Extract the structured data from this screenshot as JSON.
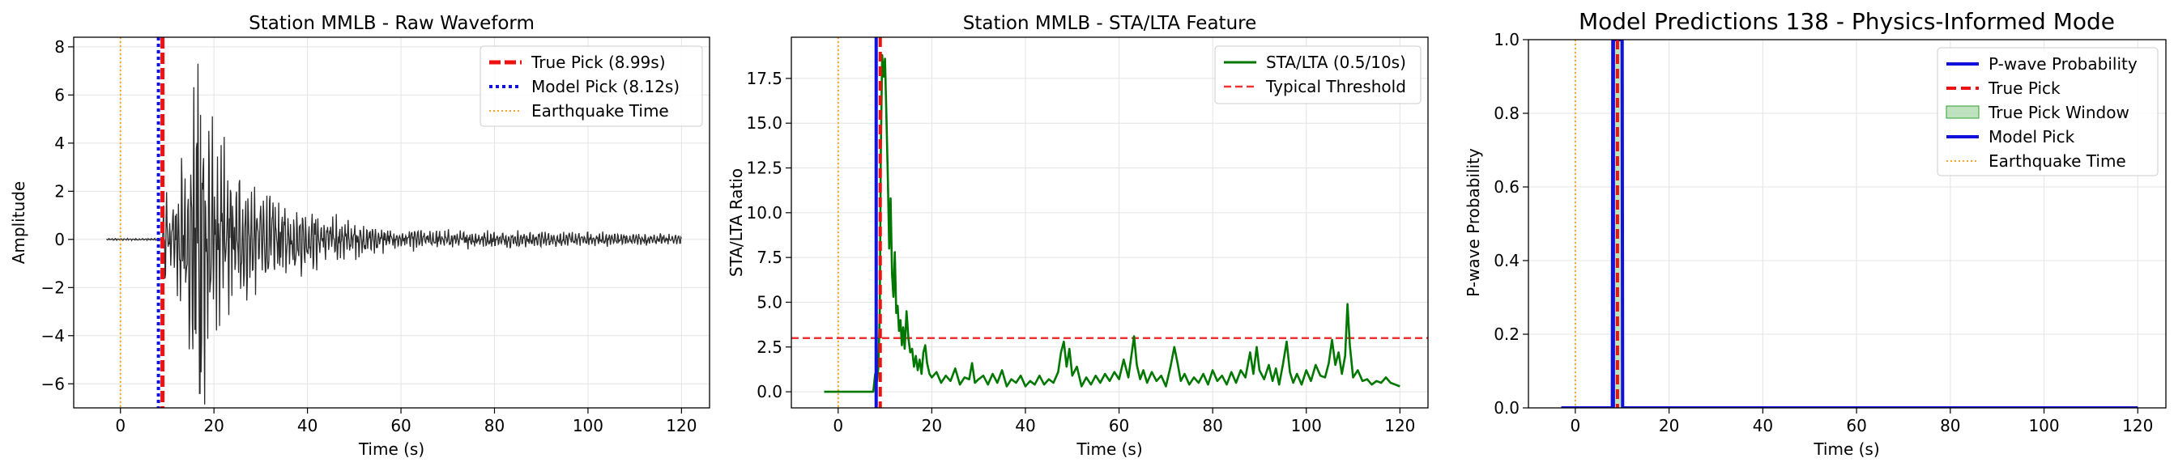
{
  "chart_data": [
    {
      "type": "line",
      "title": "Station MMLB - Raw Waveform",
      "xlabel": "Time (s)",
      "ylabel": "Amplitude",
      "xlim": [
        -10,
        126
      ],
      "ylim": [
        -7,
        8.4
      ],
      "xticks": [
        0,
        20,
        40,
        60,
        80,
        100,
        120
      ],
      "yticks": [
        -6,
        -4,
        -2,
        0,
        2,
        4,
        6,
        8
      ],
      "grid": true,
      "legend": "top-right",
      "colors": {
        "waveform": "#2b2b2b",
        "true_pick": "#ee1111",
        "model_pick": "#1111dd",
        "earthquake": "#f5a623"
      },
      "series": [
        {
          "name": "True Pick (8.99s)",
          "kind": "vline",
          "x": 8.99,
          "style": "dashed"
        },
        {
          "name": "Model Pick (8.12s)",
          "kind": "vline",
          "x": 8.12,
          "style": "dotted"
        },
        {
          "name": "Earthquake Time",
          "kind": "vline",
          "x": 0,
          "style": "dotted"
        }
      ],
      "waveform": {
        "x_start": -3,
        "x_end": 120,
        "onset": 9.0,
        "peak_time": 17.0,
        "amplitudes_s": [
          [
            9,
            1.9
          ],
          [
            10,
            1.8
          ],
          [
            11,
            1.9
          ],
          [
            12,
            2.3
          ],
          [
            13,
            3.0
          ],
          [
            14,
            3.6
          ],
          [
            15,
            4.2
          ],
          [
            16,
            6.4
          ],
          [
            17,
            7.3
          ],
          [
            18,
            6.0
          ],
          [
            20,
            4.3
          ],
          [
            22,
            3.6
          ],
          [
            24,
            3.0
          ],
          [
            26,
            2.4
          ],
          [
            28,
            2.1
          ],
          [
            30,
            2.2
          ],
          [
            33,
            1.7
          ],
          [
            36,
            1.6
          ],
          [
            40,
            1.2
          ],
          [
            45,
            1.0
          ],
          [
            50,
            0.7
          ],
          [
            55,
            0.55
          ],
          [
            60,
            0.45
          ],
          [
            70,
            0.35
          ],
          [
            80,
            0.33
          ],
          [
            90,
            0.3
          ],
          [
            100,
            0.28
          ],
          [
            110,
            0.25
          ],
          [
            120,
            0.2
          ]
        ]
      }
    },
    {
      "type": "line",
      "title": "Station MMLB - STA/LTA Feature",
      "xlabel": "Time (s)",
      "ylabel": "STA/LTA Ratio",
      "xlim": [
        -10,
        126
      ],
      "ylim": [
        -0.9,
        19.8
      ],
      "xticks": [
        0,
        20,
        40,
        60,
        80,
        100,
        120
      ],
      "yticks": [
        0.0,
        2.5,
        5.0,
        7.5,
        10.0,
        12.5,
        15.0,
        17.5
      ],
      "grid": true,
      "legend": "top-right",
      "colors": {
        "sta_lta": "#007700",
        "threshold": "#ee3333",
        "true_pick": "#ee1111",
        "model_pick": "#1111dd",
        "earthquake": "#f5a623"
      },
      "series": [
        {
          "name": "STA/LTA (0.5/10s)",
          "kind": "line",
          "points": [
            [
              -3,
              0.0
            ],
            [
              7.5,
              0.0
            ],
            [
              7.9,
              1.0
            ],
            [
              8.3,
              0.6
            ],
            [
              8.6,
              1.4
            ],
            [
              8.9,
              4.6
            ],
            [
              9.1,
              13.2
            ],
            [
              9.4,
              18.8
            ],
            [
              9.7,
              17.6
            ],
            [
              10.0,
              18.6
            ],
            [
              10.3,
              15.5
            ],
            [
              10.6,
              12.0
            ],
            [
              10.9,
              8.0
            ],
            [
              11.2,
              10.8
            ],
            [
              11.5,
              6.6
            ],
            [
              11.8,
              5.3
            ],
            [
              12.1,
              7.8
            ],
            [
              12.4,
              4.4
            ],
            [
              12.7,
              4.8
            ],
            [
              13.0,
              3.4
            ],
            [
              13.3,
              4.0
            ],
            [
              13.6,
              2.6
            ],
            [
              13.9,
              3.6
            ],
            [
              14.2,
              2.4
            ],
            [
              14.6,
              4.5
            ],
            [
              15.0,
              3.0
            ],
            [
              15.4,
              2.2
            ],
            [
              15.8,
              2.4
            ],
            [
              16.2,
              1.4
            ],
            [
              16.6,
              2.0
            ],
            [
              17.0,
              1.2
            ],
            [
              17.4,
              1.8
            ],
            [
              17.8,
              1.0
            ],
            [
              18.2,
              2.2
            ],
            [
              18.6,
              2.6
            ],
            [
              19.0,
              1.6
            ],
            [
              19.5,
              1.0
            ],
            [
              20.0,
              0.8
            ],
            [
              21,
              1.1
            ],
            [
              22,
              0.5
            ],
            [
              23,
              0.9
            ],
            [
              24,
              0.6
            ],
            [
              25,
              1.3
            ],
            [
              26,
              0.4
            ],
            [
              27,
              0.8
            ],
            [
              28,
              0.7
            ],
            [
              28.6,
              1.6
            ],
            [
              29.2,
              0.5
            ],
            [
              30,
              0.7
            ],
            [
              31,
              0.9
            ],
            [
              32,
              0.4
            ],
            [
              33,
              1.0
            ],
            [
              34,
              0.5
            ],
            [
              35,
              1.2
            ],
            [
              36,
              0.3
            ],
            [
              37,
              0.7
            ],
            [
              38,
              0.5
            ],
            [
              39,
              0.9
            ],
            [
              40,
              0.3
            ],
            [
              41,
              0.6
            ],
            [
              42,
              0.4
            ],
            [
              43,
              0.9
            ],
            [
              44,
              0.4
            ],
            [
              45,
              0.7
            ],
            [
              46,
              0.5
            ],
            [
              47,
              1.1
            ],
            [
              47.6,
              2.2
            ],
            [
              48.2,
              2.8
            ],
            [
              48.8,
              1.4
            ],
            [
              49.4,
              2.4
            ],
            [
              50,
              0.9
            ],
            [
              51,
              1.4
            ],
            [
              52,
              0.3
            ],
            [
              53,
              0.8
            ],
            [
              54,
              0.4
            ],
            [
              55,
              0.9
            ],
            [
              56,
              0.5
            ],
            [
              57,
              1.0
            ],
            [
              58,
              0.6
            ],
            [
              59,
              1.1
            ],
            [
              60,
              0.7
            ],
            [
              61,
              1.8
            ],
            [
              62,
              0.8
            ],
            [
              63.2,
              3.1
            ],
            [
              63.8,
              1.5
            ],
            [
              64.5,
              0.7
            ],
            [
              65.2,
              1.2
            ],
            [
              66,
              0.5
            ],
            [
              67,
              1.1
            ],
            [
              68,
              0.6
            ],
            [
              69,
              0.9
            ],
            [
              70,
              0.3
            ],
            [
              71,
              1.4
            ],
            [
              71.8,
              2.5
            ],
            [
              72.5,
              1.6
            ],
            [
              73.2,
              0.6
            ],
            [
              74,
              1.0
            ],
            [
              75,
              0.4
            ],
            [
              76,
              0.8
            ],
            [
              77,
              0.5
            ],
            [
              78,
              1.0
            ],
            [
              79,
              0.4
            ],
            [
              80,
              1.2
            ],
            [
              81,
              0.6
            ],
            [
              82,
              0.9
            ],
            [
              83,
              0.4
            ],
            [
              84,
              1.1
            ],
            [
              85,
              0.5
            ],
            [
              86,
              1.2
            ],
            [
              87,
              0.8
            ],
            [
              88,
              2.2
            ],
            [
              88.7,
              1.0
            ],
            [
              89.4,
              2.5
            ],
            [
              90,
              1.2
            ],
            [
              91,
              0.7
            ],
            [
              92,
              1.5
            ],
            [
              92.8,
              0.6
            ],
            [
              93.5,
              1.3
            ],
            [
              94.2,
              0.4
            ],
            [
              95,
              1.5
            ],
            [
              95.8,
              2.8
            ],
            [
              96.5,
              1.1
            ],
            [
              97.2,
              0.5
            ],
            [
              98,
              1.0
            ],
            [
              99,
              0.4
            ],
            [
              100,
              1.2
            ],
            [
              101,
              0.6
            ],
            [
              102,
              1.5
            ],
            [
              103,
              0.9
            ],
            [
              104,
              0.8
            ],
            [
              104.8,
              1.6
            ],
            [
              105.5,
              2.9
            ],
            [
              106.2,
              1.5
            ],
            [
              106.9,
              2.2
            ],
            [
              107.6,
              1.0
            ],
            [
              108.3,
              2.0
            ],
            [
              108.8,
              4.9
            ],
            [
              109.3,
              2.6
            ],
            [
              110,
              0.8
            ],
            [
              111,
              1.2
            ],
            [
              112,
              0.6
            ],
            [
              113,
              0.7
            ],
            [
              114,
              0.4
            ],
            [
              115,
              0.6
            ],
            [
              116,
              0.5
            ],
            [
              117,
              0.8
            ],
            [
              118,
              0.5
            ],
            [
              119,
              0.4
            ],
            [
              120,
              0.3
            ]
          ]
        },
        {
          "name": "Typical Threshold",
          "kind": "hline",
          "y": 3.0,
          "style": "dashed"
        },
        {
          "name": "",
          "kind": "vline",
          "x": 8.99,
          "style": "dashed",
          "role": "true_pick"
        },
        {
          "name": "",
          "kind": "vline",
          "x": 8.12,
          "style": "solid",
          "role": "model_pick"
        },
        {
          "name": "",
          "kind": "vline",
          "x": 0,
          "style": "dotted",
          "role": "earthquake"
        }
      ]
    },
    {
      "type": "line",
      "title": "Model Predictions 138 - Physics-Informed Mode",
      "xlabel": "Time (s)",
      "ylabel": "P-wave Probability",
      "xlim": [
        -10,
        126
      ],
      "ylim": [
        0.0,
        1.0
      ],
      "xticks": [
        0,
        20,
        40,
        60,
        80,
        100,
        120
      ],
      "yticks": [
        0.0,
        0.2,
        0.4,
        0.6,
        0.8,
        1.0
      ],
      "grid": true,
      "legend": "top-right",
      "colors": {
        "probability": "#1111dd",
        "true_pick": "#ee1111",
        "window": "#2ca02c",
        "model_pick": "#1111dd",
        "earthquake": "#f5a623"
      },
      "series": [
        {
          "name": "P-wave Probability",
          "kind": "line",
          "points": [
            [
              -3,
              0.0
            ],
            [
              7.9,
              0.0
            ],
            [
              8.0,
              1.0
            ],
            [
              10.0,
              1.0
            ],
            [
              10.1,
              0.0
            ],
            [
              120,
              0.0
            ]
          ]
        },
        {
          "name": "True Pick",
          "kind": "vline",
          "x": 8.99,
          "style": "dashed"
        },
        {
          "name": "True Pick Window",
          "kind": "span",
          "x0": 7.99,
          "x1": 9.99
        },
        {
          "name": "Model Pick",
          "kind": "vline",
          "x": 8.12,
          "style": "solid"
        },
        {
          "name": "Earthquake Time",
          "kind": "vline",
          "x": 0,
          "style": "dotted"
        }
      ]
    }
  ]
}
